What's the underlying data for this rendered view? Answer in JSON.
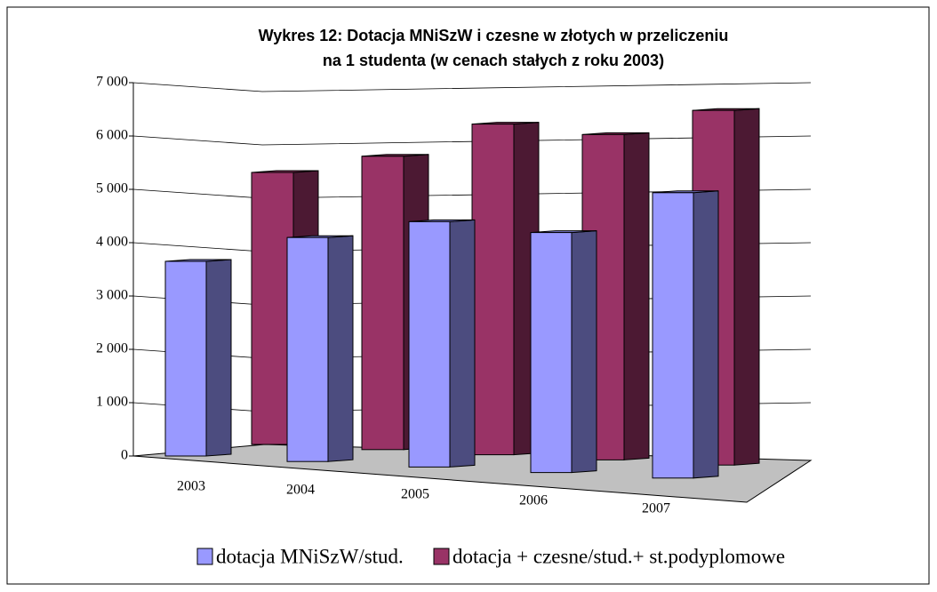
{
  "chart_data": {
    "type": "bar3d",
    "title": [
      "Wykres 12: Dotacja MNiSzW i czesne w złotych w przeliczeniu",
      "na 1 studenta (w cenach stałych z roku 2003)"
    ],
    "categories": [
      "2003",
      "2004",
      "2005",
      "2006",
      "2007"
    ],
    "series": [
      {
        "name": "dotacja MNiSzW/stud.",
        "color": "#9999ff",
        "values": [
          3650,
          4200,
          4600,
          4500,
          5350
        ]
      },
      {
        "name": "dotacja + czesne/stud.+ st.podyplomowe",
        "color": "#993366",
        "values": [
          5100,
          5500,
          6200,
          6100,
          6650
        ]
      }
    ],
    "ylim": [
      0,
      7000
    ],
    "yticks": [
      0,
      {
        "value": 1000,
        "label": "1 000"
      },
      {
        "value": 2000,
        "label": "2 000"
      },
      {
        "value": 3000,
        "label": "3 000"
      },
      {
        "value": 4000,
        "label": "4 000"
      },
      {
        "value": 5000,
        "label": "5 000"
      },
      {
        "value": 6000,
        "label": "6 000"
      },
      {
        "value": 7000,
        "label": "7 000"
      }
    ],
    "grid": true
  }
}
